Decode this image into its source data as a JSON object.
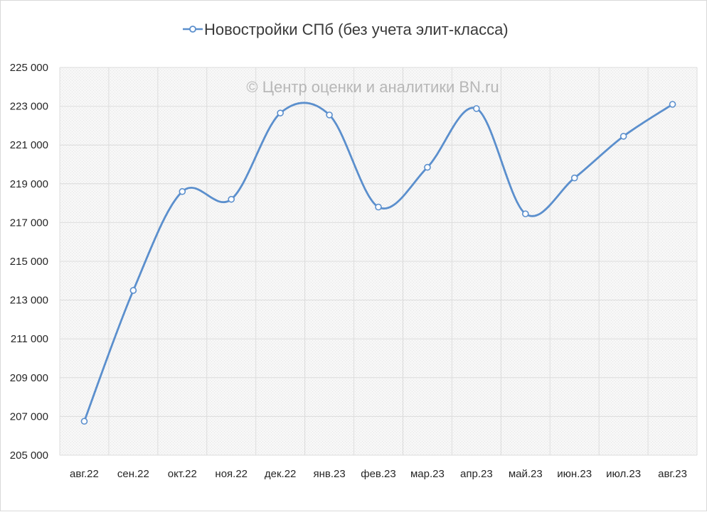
{
  "chart_data": {
    "type": "line",
    "title": "",
    "xlabel": "",
    "ylabel": "",
    "categories": [
      "авг.22",
      "сен.22",
      "окт.22",
      "ноя.22",
      "дек.22",
      "янв.23",
      "фев.23",
      "мар.23",
      "апр.23",
      "май.23",
      "июн.23",
      "июл.23",
      "авг.23"
    ],
    "series": [
      {
        "name": "Новостройки СПб (без учета элит-класса)",
        "values": [
          206750,
          213500,
          218600,
          218200,
          222650,
          222550,
          217800,
          219850,
          222880,
          217450,
          219300,
          221450,
          223100
        ]
      }
    ],
    "ylim": [
      205000,
      225000
    ],
    "ytick_step": 2000,
    "ytick_labels": [
      "205 000",
      "207 000",
      "209 000",
      "211 000",
      "213 000",
      "215 000",
      "217 000",
      "219 000",
      "221 000",
      "223 000",
      "225 000"
    ],
    "legend_position": "top",
    "grid": true,
    "smooth": true,
    "annotations": [
      "© Центр оценки и аналитики BN.ru"
    ],
    "colors": {
      "series": "#5b8fcd",
      "grid": "#dcdcdc",
      "plot_background": "#f2f2f2"
    }
  }
}
